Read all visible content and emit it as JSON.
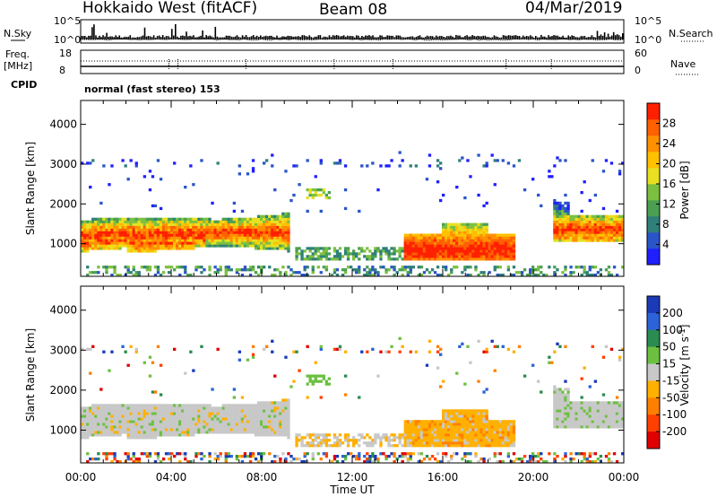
{
  "header": {
    "radar": "Hokkaido West (fitACF)",
    "beam": "Beam 08",
    "date": "04/Mar/2019"
  },
  "summary_labels": {
    "nsky": "N.Sky",
    "nsearch": "N.Search",
    "freq_top": "Freq.",
    "freq_unit": "[MHz]",
    "nave": "Nave",
    "cpid": "CPID",
    "sky_hi": "10^5",
    "sky_lo": "10^0",
    "search_hi": "10^5",
    "search_lo": "10^0",
    "freq_hi": "18",
    "freq_lo": "8",
    "nave_hi": "60",
    "nave_lo": "0"
  },
  "cpid_text": "normal (fast stereo) 153",
  "chart_data": [
    {
      "type": "heatmap",
      "panel": "power",
      "ylabel": "Slant Range [km]",
      "xlabel": "Time UT",
      "x_ticks": [
        "00:00",
        "04:00",
        "08:00",
        "12:00",
        "16:00",
        "20:00",
        "00:00"
      ],
      "x_range_hours": [
        0,
        24
      ],
      "y_ticks": [
        "1000",
        "2000",
        "3000",
        "4000"
      ],
      "y_range_km": [
        180,
        4600
      ],
      "colorbar": {
        "label": "Power [dB]",
        "ticks": [
          "4",
          "8",
          "12",
          "16",
          "20",
          "24",
          "28"
        ],
        "range": [
          0,
          32
        ],
        "colors": [
          "#1f1fff",
          "#2a55c8",
          "#2f7f7a",
          "#4aa050",
          "#7cc040",
          "#e8e020",
          "#ffc000",
          "#ff9000",
          "#ff6000",
          "#ff2000"
        ]
      },
      "features": [
        {
          "name": "dayside band",
          "t": [
            0,
            9.3
          ],
          "range_km": [
            900,
            1700
          ],
          "level": "moderate-high"
        },
        {
          "name": "ionospheric scatter 16-18 UT",
          "t": [
            15,
            19
          ],
          "range_km": [
            600,
            1200
          ],
          "level": "high"
        },
        {
          "name": "night band",
          "t": [
            21,
            24
          ],
          "range_km": [
            1100,
            1800
          ],
          "level": "moderate-high"
        },
        {
          "name": "3000 km speckle",
          "t": [
            0,
            24
          ],
          "range_km": [
            2900,
            3100
          ],
          "level": "low"
        }
      ]
    },
    {
      "type": "heatmap",
      "panel": "velocity",
      "ylabel": "Slant Range [km]",
      "xlabel": "Time UT",
      "x_ticks": [
        "00:00",
        "04:00",
        "08:00",
        "12:00",
        "16:00",
        "20:00",
        "00:00"
      ],
      "x_range_hours": [
        0,
        24
      ],
      "y_ticks": [
        "1000",
        "2000",
        "3000",
        "4000"
      ],
      "y_range_km": [
        180,
        4600
      ],
      "colorbar": {
        "label": "Velocity [m s^-1]",
        "ticks": [
          "200",
          "100",
          "50",
          "15",
          "-15",
          "-50",
          "-100",
          "-200"
        ],
        "colors": [
          "#1a3ab8",
          "#2c63d8",
          "#2a8c50",
          "#6cc040",
          "#c8c8c8",
          "#ffb000",
          "#ff8000",
          "#ff4000",
          "#e00000"
        ]
      },
      "features": [
        {
          "name": "ground scatter band",
          "t": [
            0,
            9.3
          ],
          "range_km": [
            900,
            1700
          ],
          "velocity": "near zero (grey)"
        },
        {
          "name": "ionospheric flow 16-18 UT",
          "t": [
            15,
            19
          ],
          "range_km": [
            600,
            1500
          ],
          "velocity": "-15 to -50 (orange)"
        },
        {
          "name": "night band",
          "t": [
            21,
            24
          ],
          "range_km": [
            1100,
            1800
          ],
          "velocity": "near zero (grey)"
        }
      ]
    }
  ]
}
